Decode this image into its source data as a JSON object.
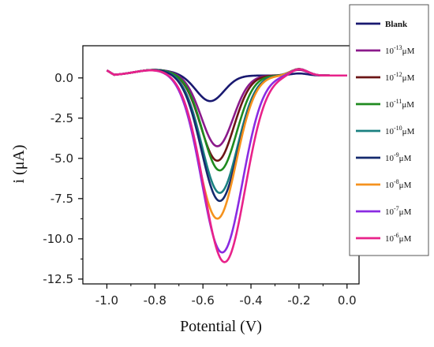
{
  "chart_data": {
    "type": "line",
    "title": "",
    "xlabel": "Potential (V)",
    "ylabel": "i (μA)",
    "xlim": [
      -1.1,
      0.05
    ],
    "ylim": [
      -12.8,
      2.0
    ],
    "xticks": [
      -1.0,
      -0.8,
      -0.6,
      -0.4,
      -0.2,
      0.0
    ],
    "xtick_labels": [
      "-1.0",
      "-0.8",
      "-0.6",
      "-0.4",
      "-0.2",
      "0.0"
    ],
    "yticks": [
      0.0,
      -2.5,
      -5.0,
      -7.5,
      -10.0,
      -12.5
    ],
    "ytick_labels": [
      "0.0",
      "-2.5",
      "-5.0",
      "-7.5",
      "-10.0",
      "-12.5"
    ],
    "legend_position": "right",
    "series": [
      {
        "name": "Blank",
        "base": "Blank",
        "exp": "",
        "unit": "",
        "color": "#191970",
        "peak_x": -0.57,
        "peak_y": -1.6
      },
      {
        "name": "10-13 μM",
        "base": "10",
        "exp": "-13",
        "unit": "μM",
        "color": "#8b1a8b",
        "peak_x": -0.54,
        "peak_y": -4.4
      },
      {
        "name": "10-12 μM",
        "base": "10",
        "exp": "-12",
        "unit": "μM",
        "color": "#6b1515",
        "peak_x": -0.54,
        "peak_y": -5.3
      },
      {
        "name": "10-11 μM",
        "base": "10",
        "exp": "-11",
        "unit": "μM",
        "color": "#1f8a1f",
        "peak_x": -0.53,
        "peak_y": -5.9
      },
      {
        "name": "10-10 μM",
        "base": "10",
        "exp": "-10",
        "unit": "μM",
        "color": "#1a8080",
        "peak_x": -0.53,
        "peak_y": -7.3
      },
      {
        "name": "10-9 μM",
        "base": "10",
        "exp": "-9",
        "unit": "μM",
        "color": "#152a6e",
        "peak_x": -0.53,
        "peak_y": -7.8
      },
      {
        "name": "10-8 μM",
        "base": "10",
        "exp": "-8",
        "unit": "μM",
        "color": "#f5921e",
        "peak_x": -0.54,
        "peak_y": -8.9
      },
      {
        "name": "10-7 μM",
        "base": "10",
        "exp": "-7",
        "unit": "μM",
        "color": "#8a2be2",
        "peak_x": -0.52,
        "peak_y": -11.0
      },
      {
        "name": "10-6 μM",
        "base": "10",
        "exp": "-6",
        "unit": "μM",
        "color": "#e8228a",
        "peak_x": -0.51,
        "peak_y": -11.6
      }
    ]
  }
}
